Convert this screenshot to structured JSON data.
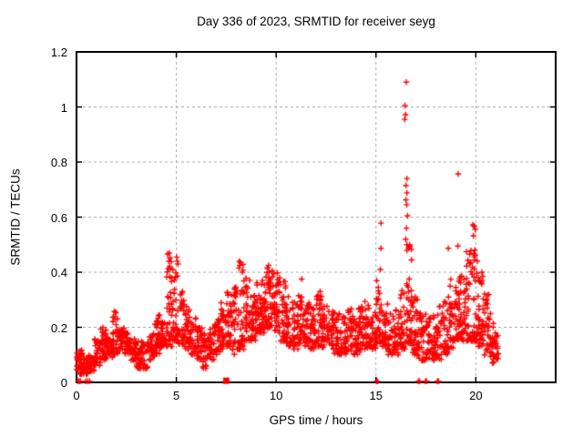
{
  "title": "Day 336 of 2023, SRMTID for receiver seyg",
  "colors": {
    "marker": "#ff0000",
    "frame": "#000000",
    "grid": "#b0b0b0",
    "background": "#ffffff",
    "text": "#000000"
  },
  "chart_data": {
    "type": "scatter",
    "title": "Day 336 of 2023, SRMTID for receiver seyg",
    "xlabel": "GPS time / hours",
    "ylabel": "SRMTID / TECUs",
    "xlim": [
      0,
      24
    ],
    "ylim": [
      0,
      1.2
    ],
    "xticks": [
      0,
      5,
      10,
      15,
      20
    ],
    "xtick_labels": [
      "0",
      "5",
      "10",
      "15",
      "20"
    ],
    "yticks": [
      0,
      0.2,
      0.4,
      0.6,
      0.8,
      1,
      1.2
    ],
    "ytick_labels": [
      "0",
      "0.2",
      "0.4",
      "0.6",
      "0.8",
      "1",
      "1.2"
    ],
    "grid": true,
    "grid_style": "dashed",
    "legend": "none",
    "marker": "plus",
    "marker_color": "#ff0000",
    "data_x_extent": [
      0,
      21.1
    ],
    "envelope_bands": [
      [
        0.0,
        0.3,
        0.03,
        0.12,
        40
      ],
      [
        0.3,
        0.6,
        0.03,
        0.09,
        28
      ],
      [
        0.6,
        0.9,
        0.04,
        0.1,
        28
      ],
      [
        0.9,
        1.2,
        0.06,
        0.16,
        30
      ],
      [
        1.2,
        1.5,
        0.08,
        0.2,
        32
      ],
      [
        1.5,
        1.8,
        0.09,
        0.17,
        30
      ],
      [
        1.8,
        2.1,
        0.1,
        0.26,
        36
      ],
      [
        2.1,
        2.4,
        0.12,
        0.2,
        30
      ],
      [
        2.4,
        2.7,
        0.1,
        0.18,
        28
      ],
      [
        2.7,
        3.0,
        0.08,
        0.16,
        28
      ],
      [
        3.0,
        3.3,
        0.05,
        0.16,
        28
      ],
      [
        3.3,
        3.6,
        0.05,
        0.15,
        26
      ],
      [
        3.6,
        3.9,
        0.08,
        0.18,
        28
      ],
      [
        3.9,
        4.2,
        0.1,
        0.25,
        32
      ],
      [
        4.2,
        4.5,
        0.12,
        0.22,
        30
      ],
      [
        4.5,
        4.8,
        0.13,
        0.47,
        40
      ],
      [
        4.8,
        5.1,
        0.15,
        0.46,
        38
      ],
      [
        5.1,
        5.4,
        0.14,
        0.33,
        30
      ],
      [
        5.4,
        5.7,
        0.12,
        0.28,
        30
      ],
      [
        5.7,
        6.0,
        0.1,
        0.24,
        28
      ],
      [
        6.0,
        6.3,
        0.08,
        0.2,
        26
      ],
      [
        6.3,
        6.6,
        0.05,
        0.18,
        26
      ],
      [
        6.6,
        6.9,
        0.08,
        0.22,
        26
      ],
      [
        6.9,
        7.2,
        0.1,
        0.24,
        28
      ],
      [
        7.2,
        7.5,
        0.12,
        0.3,
        30
      ],
      [
        7.5,
        7.8,
        0.13,
        0.33,
        32
      ],
      [
        7.8,
        8.1,
        0.1,
        0.35,
        30
      ],
      [
        8.1,
        8.4,
        0.12,
        0.44,
        34
      ],
      [
        8.4,
        8.7,
        0.15,
        0.38,
        32
      ],
      [
        8.7,
        9.0,
        0.15,
        0.35,
        32
      ],
      [
        9.0,
        9.3,
        0.18,
        0.38,
        34
      ],
      [
        9.3,
        9.6,
        0.18,
        0.42,
        36
      ],
      [
        9.6,
        9.9,
        0.2,
        0.42,
        36
      ],
      [
        9.9,
        10.2,
        0.18,
        0.4,
        34
      ],
      [
        10.2,
        10.5,
        0.15,
        0.37,
        32
      ],
      [
        10.5,
        10.8,
        0.13,
        0.32,
        30
      ],
      [
        10.8,
        11.1,
        0.12,
        0.3,
        30
      ],
      [
        11.1,
        11.4,
        0.14,
        0.38,
        32
      ],
      [
        11.4,
        11.7,
        0.13,
        0.3,
        30
      ],
      [
        11.7,
        12.0,
        0.12,
        0.28,
        30
      ],
      [
        12.0,
        12.3,
        0.13,
        0.33,
        32
      ],
      [
        12.3,
        12.6,
        0.12,
        0.28,
        30
      ],
      [
        12.6,
        12.9,
        0.12,
        0.26,
        28
      ],
      [
        12.9,
        13.2,
        0.1,
        0.26,
        28
      ],
      [
        13.2,
        13.5,
        0.1,
        0.25,
        28
      ],
      [
        13.5,
        13.8,
        0.11,
        0.27,
        28
      ],
      [
        13.8,
        14.1,
        0.1,
        0.26,
        28
      ],
      [
        14.1,
        14.4,
        0.11,
        0.28,
        30
      ],
      [
        14.4,
        14.7,
        0.12,
        0.3,
        30
      ],
      [
        14.7,
        15.0,
        0.12,
        0.27,
        28
      ],
      [
        15.0,
        15.3,
        0.14,
        0.4,
        34
      ],
      [
        15.3,
        15.6,
        0.12,
        0.3,
        28
      ],
      [
        15.6,
        15.9,
        0.1,
        0.25,
        26
      ],
      [
        15.9,
        16.2,
        0.1,
        0.28,
        28
      ],
      [
        16.2,
        16.5,
        0.12,
        0.4,
        34
      ],
      [
        16.5,
        16.8,
        0.14,
        0.5,
        40
      ],
      [
        16.8,
        17.1,
        0.1,
        0.35,
        30
      ],
      [
        17.1,
        17.4,
        0.08,
        0.28,
        28
      ],
      [
        17.4,
        17.7,
        0.08,
        0.25,
        28
      ],
      [
        17.7,
        18.0,
        0.08,
        0.25,
        26
      ],
      [
        18.0,
        18.3,
        0.08,
        0.28,
        28
      ],
      [
        18.3,
        18.6,
        0.1,
        0.3,
        28
      ],
      [
        18.6,
        18.9,
        0.12,
        0.35,
        30
      ],
      [
        18.9,
        19.2,
        0.15,
        0.38,
        32
      ],
      [
        19.2,
        19.5,
        0.15,
        0.4,
        34
      ],
      [
        19.5,
        19.8,
        0.15,
        0.48,
        36
      ],
      [
        19.8,
        20.1,
        0.15,
        0.45,
        36
      ],
      [
        20.1,
        20.4,
        0.13,
        0.38,
        34
      ],
      [
        20.4,
        20.7,
        0.1,
        0.33,
        32
      ],
      [
        20.7,
        21.0,
        0.07,
        0.25,
        30
      ],
      [
        21.0,
        21.15,
        0.07,
        0.18,
        12
      ]
    ],
    "outlier_points": [
      [
        16.52,
        1.09
      ],
      [
        16.45,
        1.005
      ],
      [
        16.48,
        0.972
      ],
      [
        16.44,
        0.955
      ],
      [
        16.55,
        0.74
      ],
      [
        16.5,
        0.715
      ],
      [
        16.55,
        0.688
      ],
      [
        16.5,
        0.663
      ],
      [
        16.54,
        0.645
      ],
      [
        16.58,
        0.605
      ],
      [
        16.53,
        0.56
      ],
      [
        16.49,
        0.52
      ],
      [
        16.55,
        0.5
      ],
      [
        19.12,
        0.757
      ],
      [
        19.1,
        0.495
      ],
      [
        18.62,
        0.487
      ],
      [
        18.75,
        0.374
      ],
      [
        15.25,
        0.578
      ],
      [
        15.25,
        0.487
      ],
      [
        15.22,
        0.41
      ],
      [
        19.85,
        0.572
      ],
      [
        19.92,
        0.568
      ],
      [
        19.97,
        0.556
      ],
      [
        19.88,
        0.532
      ],
      [
        19.95,
        0.48
      ],
      [
        19.9,
        0.468
      ],
      [
        19.97,
        0.462
      ],
      [
        19.93,
        0.455
      ],
      [
        4.65,
        0.47
      ],
      [
        4.68,
        0.452
      ],
      [
        4.62,
        0.44
      ],
      [
        5.02,
        0.455
      ],
      [
        5.05,
        0.44
      ],
      [
        5.08,
        0.43
      ],
      [
        8.15,
        0.44
      ],
      [
        8.18,
        0.425
      ],
      [
        9.62,
        0.425
      ],
      [
        9.55,
        0.415
      ],
      [
        11.28,
        0.375
      ],
      [
        12.2,
        0.33
      ],
      [
        1.9,
        0.258
      ],
      [
        20.3,
        0.4
      ],
      [
        20.35,
        0.385
      ]
    ],
    "baseline_points": [
      [
        0.08,
        0.004
      ],
      [
        0.12,
        0.004
      ],
      [
        0.2,
        0.004
      ],
      [
        0.45,
        0.004
      ],
      [
        0.55,
        0.004
      ],
      [
        0.65,
        0.004
      ],
      [
        15.03,
        0.004
      ],
      [
        15.08,
        0.004
      ],
      [
        17.12,
        0.004
      ],
      [
        17.18,
        0.004
      ],
      [
        17.48,
        0.004
      ],
      [
        17.53,
        0.004
      ],
      [
        18.08,
        0.004
      ],
      [
        18.13,
        0.004
      ]
    ],
    "square_marker": {
      "x": 7.5,
      "y": 0.006
    }
  }
}
